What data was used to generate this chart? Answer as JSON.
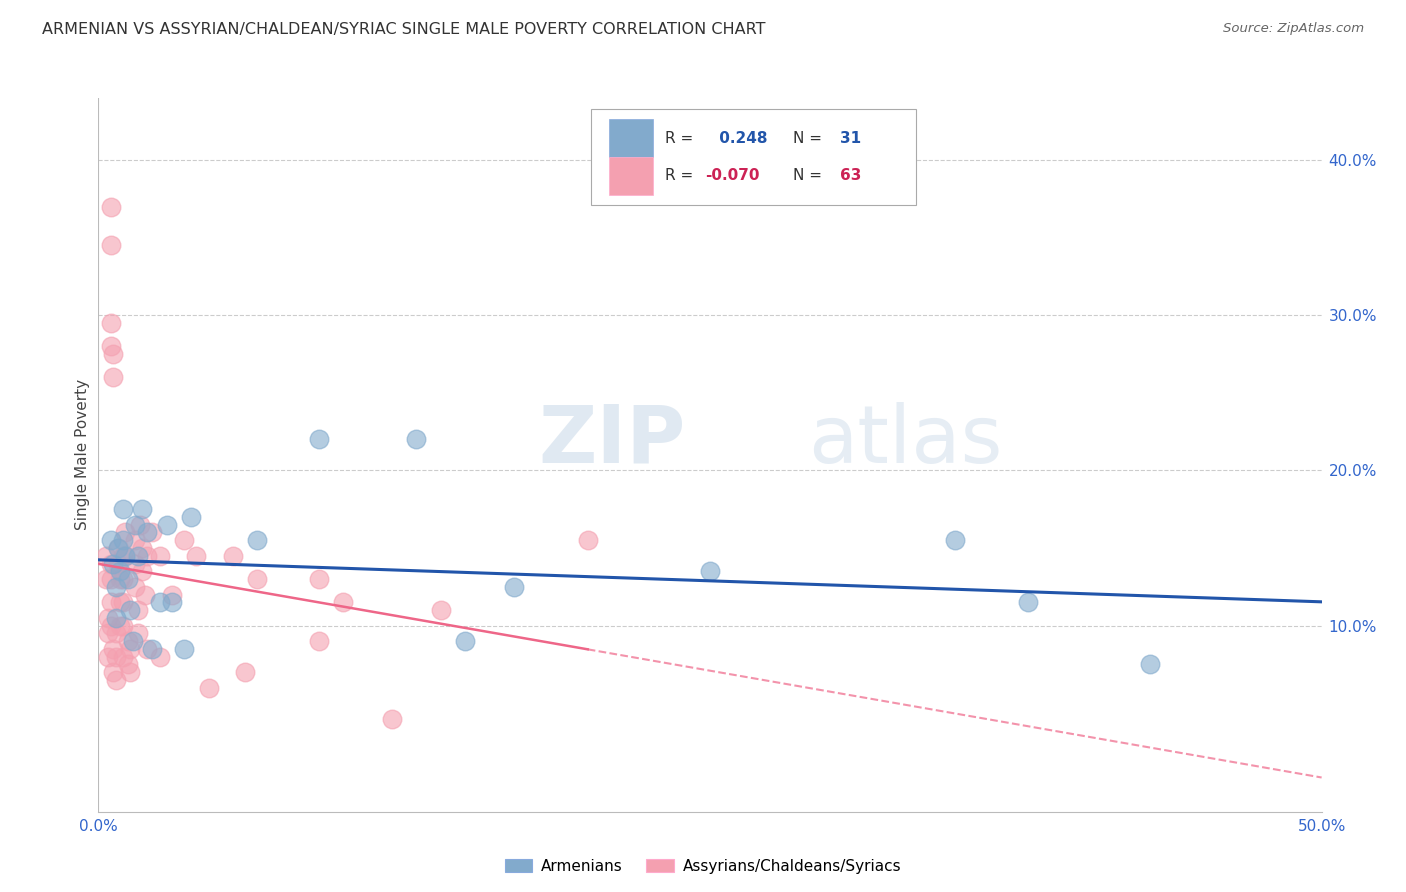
{
  "title": "ARMENIAN VS ASSYRIAN/CHALDEAN/SYRIAC SINGLE MALE POVERTY CORRELATION CHART",
  "source": "Source: ZipAtlas.com",
  "ylabel": "Single Male Poverty",
  "y_tick_vals": [
    0.1,
    0.2,
    0.3,
    0.4
  ],
  "y_ticks": [
    "10.0%",
    "20.0%",
    "30.0%",
    "40.0%"
  ],
  "x_lim": [
    0.0,
    0.5
  ],
  "y_lim": [
    -0.02,
    0.44
  ],
  "armenian_R": 0.248,
  "armenian_N": 31,
  "assyrian_R": -0.07,
  "assyrian_N": 63,
  "armenian_color": "#82AACC",
  "assyrian_color": "#F4A0B0",
  "armenian_line_color": "#2255AA",
  "assyrian_line_color": "#EE6688",
  "watermark_zip": "ZIP",
  "watermark_atlas": "atlas",
  "armenian_x": [
    0.005,
    0.006,
    0.007,
    0.007,
    0.008,
    0.009,
    0.01,
    0.01,
    0.011,
    0.012,
    0.013,
    0.014,
    0.015,
    0.016,
    0.018,
    0.02,
    0.022,
    0.025,
    0.028,
    0.03,
    0.035,
    0.038,
    0.065,
    0.09,
    0.13,
    0.15,
    0.17,
    0.25,
    0.35,
    0.38,
    0.43
  ],
  "armenian_y": [
    0.155,
    0.14,
    0.125,
    0.105,
    0.15,
    0.135,
    0.175,
    0.155,
    0.145,
    0.13,
    0.11,
    0.09,
    0.165,
    0.145,
    0.175,
    0.16,
    0.085,
    0.115,
    0.165,
    0.115,
    0.085,
    0.17,
    0.155,
    0.22,
    0.22,
    0.09,
    0.125,
    0.135,
    0.155,
    0.115,
    0.075
  ],
  "assyrian_x": [
    0.003,
    0.003,
    0.004,
    0.004,
    0.004,
    0.005,
    0.005,
    0.005,
    0.005,
    0.005,
    0.005,
    0.005,
    0.005,
    0.006,
    0.006,
    0.006,
    0.006,
    0.007,
    0.007,
    0.007,
    0.008,
    0.008,
    0.009,
    0.009,
    0.009,
    0.01,
    0.01,
    0.01,
    0.01,
    0.01,
    0.011,
    0.011,
    0.012,
    0.012,
    0.013,
    0.013,
    0.015,
    0.015,
    0.015,
    0.016,
    0.016,
    0.017,
    0.018,
    0.018,
    0.019,
    0.02,
    0.02,
    0.022,
    0.025,
    0.025,
    0.03,
    0.035,
    0.04,
    0.045,
    0.055,
    0.06,
    0.065,
    0.09,
    0.09,
    0.1,
    0.12,
    0.14,
    0.2
  ],
  "assyrian_y": [
    0.145,
    0.13,
    0.105,
    0.095,
    0.08,
    0.37,
    0.345,
    0.295,
    0.28,
    0.14,
    0.13,
    0.115,
    0.1,
    0.275,
    0.26,
    0.085,
    0.07,
    0.095,
    0.08,
    0.065,
    0.15,
    0.14,
    0.13,
    0.115,
    0.1,
    0.145,
    0.13,
    0.115,
    0.1,
    0.08,
    0.16,
    0.145,
    0.09,
    0.075,
    0.085,
    0.07,
    0.155,
    0.14,
    0.125,
    0.11,
    0.095,
    0.165,
    0.15,
    0.135,
    0.12,
    0.145,
    0.085,
    0.16,
    0.145,
    0.08,
    0.12,
    0.155,
    0.145,
    0.06,
    0.145,
    0.07,
    0.13,
    0.13,
    0.09,
    0.115,
    0.04,
    0.11,
    0.155
  ]
}
